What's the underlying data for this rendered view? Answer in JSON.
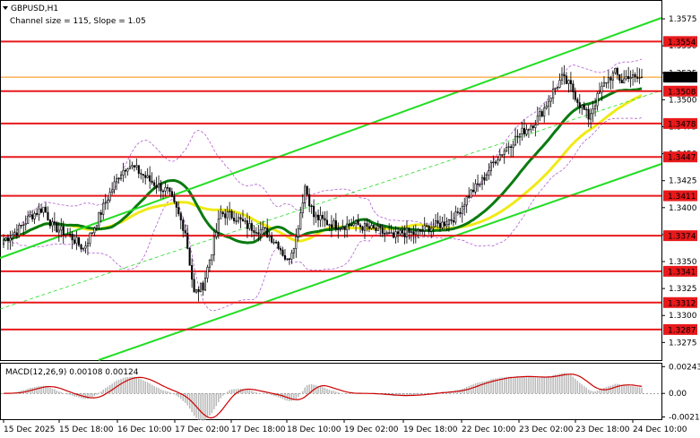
{
  "chart_data": {
    "type": "candlestick",
    "title": "GBPUSD,H1",
    "subtitle": "Channel size = 115, Slope = 1.05",
    "y_ticks": [
      "1.3575",
      "1.3550",
      "1.3525",
      "1.3500",
      "1.3475",
      "1.3450",
      "1.3425",
      "1.3400",
      "1.3375",
      "1.3350",
      "1.3325",
      "1.3300",
      "1.3275"
    ],
    "ylim": [
      1.3262,
      1.359
    ],
    "x_ticks": [
      "15 Dec 2025",
      "15 Dec 18:00",
      "16 Dec 10:00",
      "17 Dec 02:00",
      "17 Dec 18:00",
      "18 Dec 10:00",
      "19 Dec 02:00",
      "19 Dec 18:00",
      "22 Dec 10:00",
      "23 Dec 02:00",
      "23 Dec 18:00",
      "24 Dec 10:00"
    ],
    "levels": [
      {
        "label": "1.3554",
        "value": 1.3554
      },
      {
        "label": "1.3508",
        "value": 1.3508
      },
      {
        "label": "1.3478",
        "value": 1.3478
      },
      {
        "label": "1.3447",
        "value": 1.3447
      },
      {
        "label": "1.3411",
        "value": 1.3411
      },
      {
        "label": "1.3374",
        "value": 1.3374
      },
      {
        "label": "1.3341",
        "value": 1.3341
      },
      {
        "label": "1.3312",
        "value": 1.3312
      },
      {
        "label": "1.3287",
        "value": 1.3287
      }
    ],
    "current_price": {
      "label": "1.3521",
      "value": 1.3521
    },
    "close_key": [
      [
        0,
        1.337
      ],
      [
        6,
        1.3378
      ],
      [
        12,
        1.3392
      ],
      [
        18,
        1.34
      ],
      [
        22,
        1.3383
      ],
      [
        30,
        1.3374
      ],
      [
        36,
        1.3362
      ],
      [
        40,
        1.3378
      ],
      [
        46,
        1.3405
      ],
      [
        52,
        1.343
      ],
      [
        56,
        1.344
      ],
      [
        60,
        1.3435
      ],
      [
        66,
        1.3425
      ],
      [
        74,
        1.3415
      ],
      [
        78,
        1.3398
      ],
      [
        82,
        1.3378
      ],
      [
        86,
        1.332
      ],
      [
        90,
        1.3328
      ],
      [
        94,
        1.336
      ],
      [
        98,
        1.3395
      ],
      [
        104,
        1.3392
      ],
      [
        110,
        1.3383
      ],
      [
        118,
        1.3378
      ],
      [
        124,
        1.3366
      ],
      [
        128,
        1.335
      ],
      [
        132,
        1.3372
      ],
      [
        136,
        1.342
      ],
      [
        140,
        1.3392
      ],
      [
        146,
        1.3386
      ],
      [
        152,
        1.3383
      ],
      [
        158,
        1.3385
      ],
      [
        164,
        1.3381
      ],
      [
        170,
        1.3378
      ],
      [
        176,
        1.3372
      ],
      [
        180,
        1.3377
      ],
      [
        186,
        1.3376
      ],
      [
        192,
        1.3382
      ],
      [
        198,
        1.3385
      ],
      [
        204,
        1.3392
      ],
      [
        210,
        1.3412
      ],
      [
        216,
        1.3425
      ],
      [
        222,
        1.3445
      ],
      [
        228,
        1.3458
      ],
      [
        234,
        1.347
      ],
      [
        240,
        1.348
      ],
      [
        244,
        1.3492
      ],
      [
        248,
        1.3508
      ],
      [
        252,
        1.352
      ],
      [
        256,
        1.3512
      ],
      [
        260,
        1.3496
      ],
      [
        264,
        1.3484
      ],
      [
        268,
        1.3502
      ],
      [
        272,
        1.3518
      ],
      [
        276,
        1.3525
      ],
      [
        279,
        1.3517
      ],
      [
        282,
        1.3523
      ],
      [
        285,
        1.3519
      ],
      [
        288,
        1.3521
      ]
    ],
    "series": [
      {
        "values": [],
        "color": "#0a7a10"
      },
      {
        "values": [],
        "color": "#f0ea18"
      },
      {
        "values": [],
        "color": "#b060d0"
      }
    ],
    "channel_color": "#22dd22",
    "level_color": "#e8191b",
    "macd": {
      "label": "MACD(12,26,9) 0.00108 0.00124",
      "y_ticks": [
        "0.00243",
        "0.00",
        "-0.00214"
      ],
      "ylim": [
        -0.00226,
        0.00262
      ]
    }
  }
}
